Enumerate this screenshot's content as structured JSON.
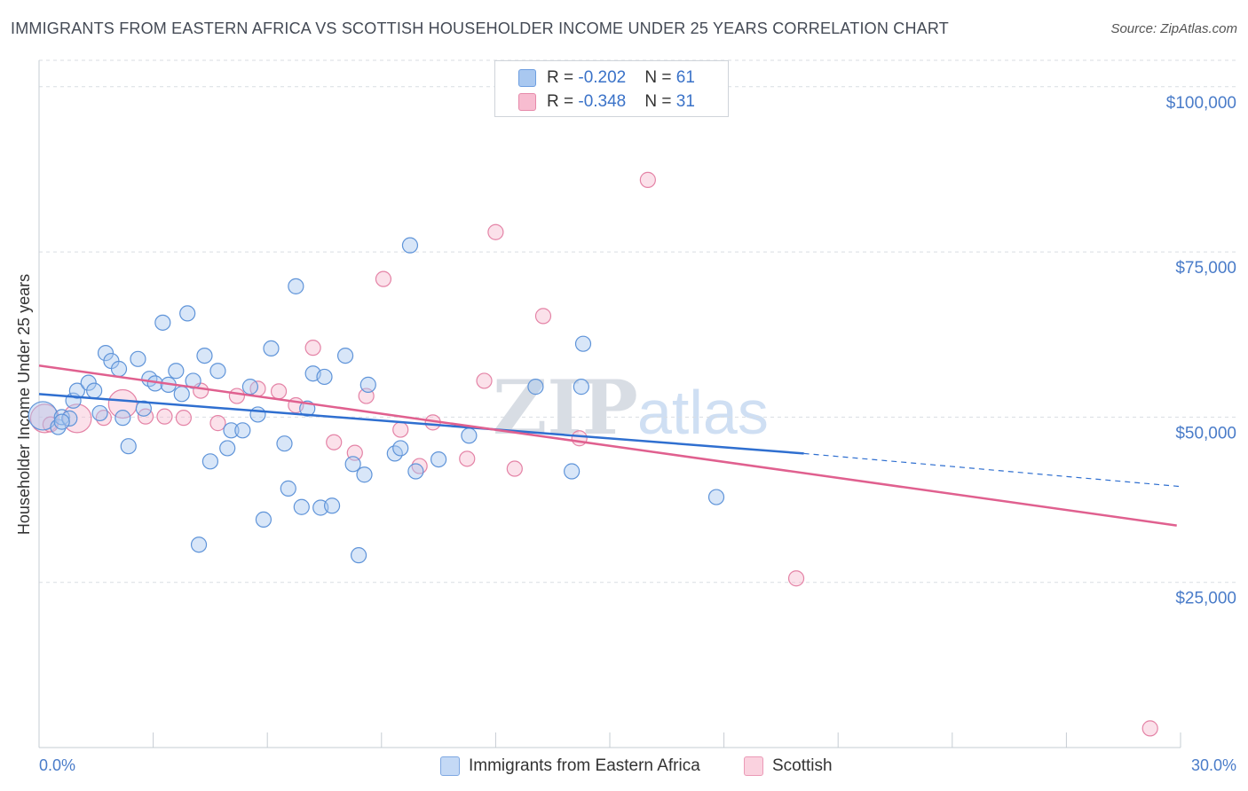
{
  "header": {
    "title": "IMMIGRANTS FROM EASTERN AFRICA VS SCOTTISH HOUSEHOLDER INCOME UNDER 25 YEARS CORRELATION CHART",
    "source": "Source: ZipAtlas.com"
  },
  "watermark": {
    "zip": "ZIP",
    "atlas": "atlas"
  },
  "stats_legend": [
    {
      "r_label": "R = ",
      "r_value": "-0.202",
      "n_label": "N = ",
      "n_value": "61"
    },
    {
      "r_label": "R = ",
      "r_value": "-0.348",
      "n_label": "N = ",
      "n_value": "31"
    }
  ],
  "chart_data": {
    "type": "scatter",
    "title": "IMMIGRANTS FROM EASTERN AFRICA VS SCOTTISH HOUSEHOLDER INCOME UNDER 25 YEARS CORRELATION CHART",
    "xlabel": "",
    "ylabel": "Householder Income Under 25 years",
    "xlim": [
      0,
      30
    ],
    "ylim": [
      0,
      104000
    ],
    "x_tick_labels": [
      "0.0%",
      "30.0%"
    ],
    "y_ticks": [
      25000,
      50000,
      75000,
      100000
    ],
    "y_tick_labels": [
      "$25,000",
      "$50,000",
      "$75,000",
      "$100,000"
    ],
    "grid": true,
    "legend_position": "bottom-center",
    "colors": {
      "eastern_africa": "#a9c8f0",
      "eastern_africa_line": "#2f6fd0",
      "scottish": "#f7bcd0",
      "scottish_line": "#e0608f",
      "tick_label": "#4a7cc9"
    },
    "series": [
      {
        "name": "Immigrants from Eastern Africa",
        "trend": {
          "x": [
            0,
            20.1,
            30
          ],
          "y": [
            53500,
            44500,
            39500
          ],
          "dashed_from_x": 20.1
        },
        "points": [
          {
            "x": 0.1,
            "y": 50200,
            "big": true
          },
          {
            "x": 0.5,
            "y": 48500
          },
          {
            "x": 0.6,
            "y": 50000
          },
          {
            "x": 0.8,
            "y": 49800
          },
          {
            "x": 0.9,
            "y": 52500
          },
          {
            "x": 1.0,
            "y": 54000
          },
          {
            "x": 1.3,
            "y": 55200
          },
          {
            "x": 1.45,
            "y": 54000
          },
          {
            "x": 1.6,
            "y": 50600
          },
          {
            "x": 1.75,
            "y": 59700
          },
          {
            "x": 1.9,
            "y": 58500
          },
          {
            "x": 2.1,
            "y": 57300
          },
          {
            "x": 2.2,
            "y": 49900
          },
          {
            "x": 2.35,
            "y": 45600
          },
          {
            "x": 2.6,
            "y": 58800
          },
          {
            "x": 2.75,
            "y": 51300
          },
          {
            "x": 2.9,
            "y": 55800
          },
          {
            "x": 3.05,
            "y": 55100
          },
          {
            "x": 3.25,
            "y": 64300
          },
          {
            "x": 3.4,
            "y": 54900
          },
          {
            "x": 3.6,
            "y": 57000
          },
          {
            "x": 3.75,
            "y": 53500
          },
          {
            "x": 3.9,
            "y": 65700
          },
          {
            "x": 4.05,
            "y": 55500
          },
          {
            "x": 4.2,
            "y": 30700
          },
          {
            "x": 4.35,
            "y": 59300
          },
          {
            "x": 4.5,
            "y": 43300
          },
          {
            "x": 4.7,
            "y": 57000
          },
          {
            "x": 4.95,
            "y": 45300
          },
          {
            "x": 5.05,
            "y": 48000
          },
          {
            "x": 5.35,
            "y": 48000
          },
          {
            "x": 5.55,
            "y": 54600
          },
          {
            "x": 5.75,
            "y": 50400
          },
          {
            "x": 5.9,
            "y": 34500
          },
          {
            "x": 6.1,
            "y": 60400
          },
          {
            "x": 6.45,
            "y": 46000
          },
          {
            "x": 6.55,
            "y": 39200
          },
          {
            "x": 6.75,
            "y": 69800
          },
          {
            "x": 6.9,
            "y": 36400
          },
          {
            "x": 7.05,
            "y": 51300
          },
          {
            "x": 7.2,
            "y": 56600
          },
          {
            "x": 7.4,
            "y": 36300
          },
          {
            "x": 7.5,
            "y": 56100
          },
          {
            "x": 7.7,
            "y": 36600
          },
          {
            "x": 8.05,
            "y": 59300
          },
          {
            "x": 8.25,
            "y": 42900
          },
          {
            "x": 8.4,
            "y": 29100
          },
          {
            "x": 8.55,
            "y": 41300
          },
          {
            "x": 8.65,
            "y": 54900
          },
          {
            "x": 9.35,
            "y": 44500
          },
          {
            "x": 9.5,
            "y": 45300
          },
          {
            "x": 9.75,
            "y": 76000
          },
          {
            "x": 9.9,
            "y": 41800
          },
          {
            "x": 10.5,
            "y": 43600
          },
          {
            "x": 11.3,
            "y": 47200
          },
          {
            "x": 13.05,
            "y": 54600
          },
          {
            "x": 14.0,
            "y": 41800
          },
          {
            "x": 14.25,
            "y": 54600
          },
          {
            "x": 14.3,
            "y": 61100
          },
          {
            "x": 17.8,
            "y": 37900
          },
          {
            "x": 0.6,
            "y": 49300
          }
        ]
      },
      {
        "name": "Scottish",
        "trend": {
          "x": [
            0,
            29.9
          ],
          "y": [
            57800,
            33600
          ]
        },
        "points": [
          {
            "x": 0.15,
            "y": 49800,
            "big": true
          },
          {
            "x": 1.0,
            "y": 49800,
            "big": true
          },
          {
            "x": 1.7,
            "y": 49900
          },
          {
            "x": 2.2,
            "y": 52000,
            "big": true
          },
          {
            "x": 2.8,
            "y": 50100
          },
          {
            "x": 3.3,
            "y": 50100
          },
          {
            "x": 3.8,
            "y": 49900
          },
          {
            "x": 4.25,
            "y": 54000
          },
          {
            "x": 4.7,
            "y": 49100
          },
          {
            "x": 5.2,
            "y": 53200
          },
          {
            "x": 5.75,
            "y": 54300
          },
          {
            "x": 6.3,
            "y": 53900
          },
          {
            "x": 6.75,
            "y": 51800
          },
          {
            "x": 7.2,
            "y": 60500
          },
          {
            "x": 7.75,
            "y": 46200
          },
          {
            "x": 8.3,
            "y": 44600
          },
          {
            "x": 8.6,
            "y": 53200
          },
          {
            "x": 9.05,
            "y": 70900
          },
          {
            "x": 9.5,
            "y": 48100
          },
          {
            "x": 10.0,
            "y": 42600
          },
          {
            "x": 10.35,
            "y": 49200
          },
          {
            "x": 11.25,
            "y": 43700
          },
          {
            "x": 11.7,
            "y": 55500
          },
          {
            "x": 12.0,
            "y": 78000
          },
          {
            "x": 12.5,
            "y": 42200
          },
          {
            "x": 13.25,
            "y": 65300
          },
          {
            "x": 14.2,
            "y": 46800
          },
          {
            "x": 16.0,
            "y": 85900
          },
          {
            "x": 19.9,
            "y": 25600
          },
          {
            "x": 29.2,
            "y": 2900
          },
          {
            "x": 0.3,
            "y": 48900
          }
        ]
      }
    ]
  }
}
